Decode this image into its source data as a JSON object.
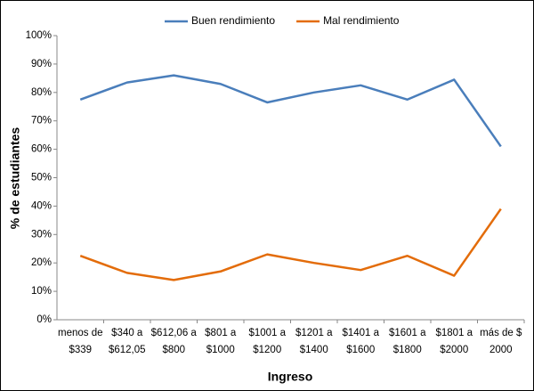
{
  "chart_data": {
    "type": "line",
    "x_label": "Ingreso",
    "y_label": "% de estudiantes",
    "categories": [
      [
        "menos de",
        "$339"
      ],
      [
        "$340 a",
        "$612,05"
      ],
      [
        "$612,06 a",
        "$800"
      ],
      [
        "$801 a",
        "$1000"
      ],
      [
        "$1001 a",
        "$1200"
      ],
      [
        "$1201 a",
        "$1400"
      ],
      [
        "$1401 a",
        "$1600"
      ],
      [
        "$1601 a",
        "$1800"
      ],
      [
        "$1801 a",
        "$2000"
      ],
      [
        "más de $",
        "2000"
      ]
    ],
    "series": [
      {
        "name": "Buen rendimiento",
        "color": "#4a7ebb",
        "values": [
          77.5,
          83.5,
          86,
          83,
          76.5,
          80,
          82.5,
          77.5,
          84.5,
          61
        ]
      },
      {
        "name": "Mal rendimiento",
        "color": "#e36c0a",
        "values": [
          22.5,
          16.5,
          14,
          17,
          23,
          20,
          17.5,
          22.5,
          15.5,
          39
        ]
      }
    ],
    "ylim": [
      0,
      100
    ],
    "yticks": [
      {
        "value": 0,
        "label": "0%"
      },
      {
        "value": 10,
        "label": "10%"
      },
      {
        "value": 20,
        "label": "20%"
      },
      {
        "value": 30,
        "label": "30%"
      },
      {
        "value": 40,
        "label": "40%"
      },
      {
        "value": 50,
        "label": "50%"
      },
      {
        "value": 60,
        "label": "60%"
      },
      {
        "value": 70,
        "label": "70%"
      },
      {
        "value": 80,
        "label": "80%"
      },
      {
        "value": 90,
        "label": "90%"
      },
      {
        "value": 100,
        "label": "100%"
      }
    ],
    "legend": "top"
  }
}
